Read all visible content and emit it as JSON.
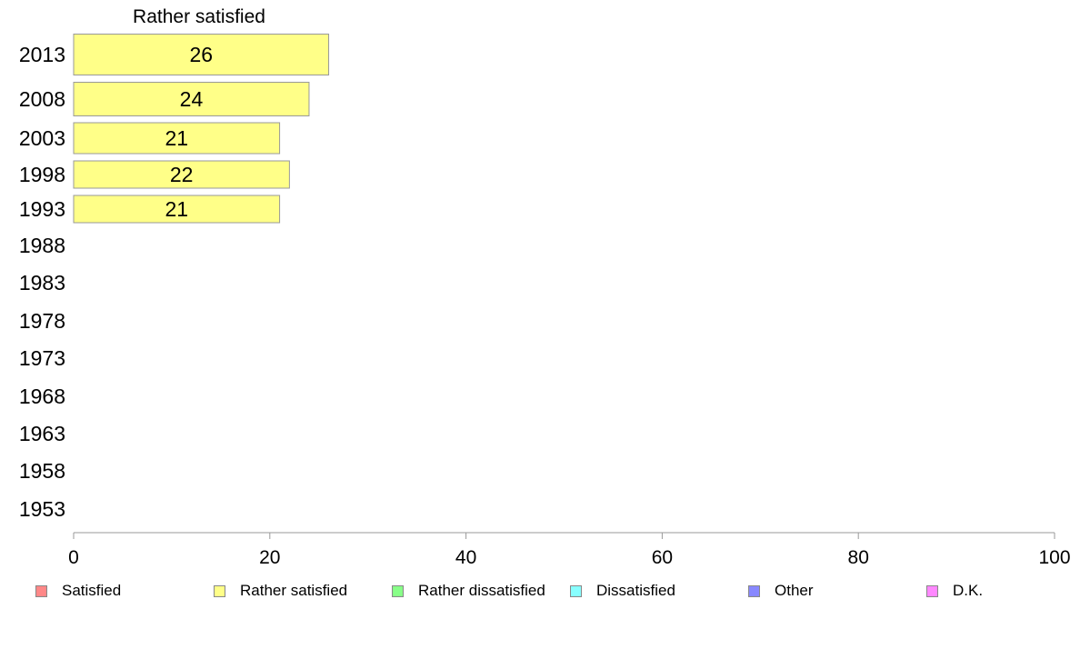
{
  "chart_data": {
    "type": "bar",
    "orientation": "horizontal",
    "title": "Rather satisfied",
    "categories": [
      "2013",
      "2008",
      "2003",
      "1998",
      "1993",
      "1988",
      "1983",
      "1978",
      "1973",
      "1968",
      "1963",
      "1958",
      "1953"
    ],
    "series": [
      {
        "name": "Rather satisfied",
        "color": "#ffff88",
        "values": [
          26,
          24,
          21,
          22,
          21,
          null,
          null,
          null,
          null,
          null,
          null,
          null,
          null
        ],
        "labels": [
          "26",
          "24",
          "21",
          "22",
          "21",
          "",
          "",
          "",
          "",
          "",
          "",
          "",
          ""
        ]
      }
    ],
    "xlim": [
      0,
      100
    ],
    "xticks": [
      "0",
      "20",
      "40",
      "60",
      "80",
      "100"
    ],
    "grid": false,
    "legend_position": "bottom"
  },
  "legend": [
    {
      "label": "Satisfied",
      "color": "#ff8888"
    },
    {
      "label": "Rather satisfied",
      "color": "#ffff88"
    },
    {
      "label": "Rather dissatisfied",
      "color": "#88ff88"
    },
    {
      "label": "Dissatisfied",
      "color": "#88ffff"
    },
    {
      "label": "Other",
      "color": "#8888ff"
    },
    {
      "label": "D.K.",
      "color": "#ff88ff"
    }
  ]
}
